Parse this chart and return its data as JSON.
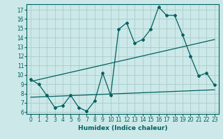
{
  "xlabel": "Humidex (Indice chaleur)",
  "background_color": "#cce8e8",
  "grid_color": "#aacccc",
  "line_color": "#006060",
  "xlim": [
    -0.5,
    23.5
  ],
  "ylim": [
    5.8,
    17.6
  ],
  "yticks": [
    6,
    7,
    8,
    9,
    10,
    11,
    12,
    13,
    14,
    15,
    16,
    17
  ],
  "xticks": [
    0,
    1,
    2,
    3,
    4,
    5,
    6,
    7,
    8,
    9,
    10,
    11,
    12,
    13,
    14,
    15,
    16,
    17,
    18,
    19,
    20,
    21,
    22,
    23
  ],
  "series1": [
    9.5,
    9.0,
    7.8,
    6.5,
    6.7,
    7.8,
    6.5,
    6.1,
    7.2,
    10.2,
    7.8,
    14.9,
    15.6,
    13.4,
    13.8,
    14.9,
    17.3,
    16.4,
    16.4,
    14.3,
    12.0,
    9.9,
    10.2,
    8.9
  ],
  "series2_x": [
    0,
    23
  ],
  "series2_y": [
    9.3,
    13.8
  ],
  "series3_x": [
    0,
    23
  ],
  "series3_y": [
    7.6,
    8.4
  ]
}
